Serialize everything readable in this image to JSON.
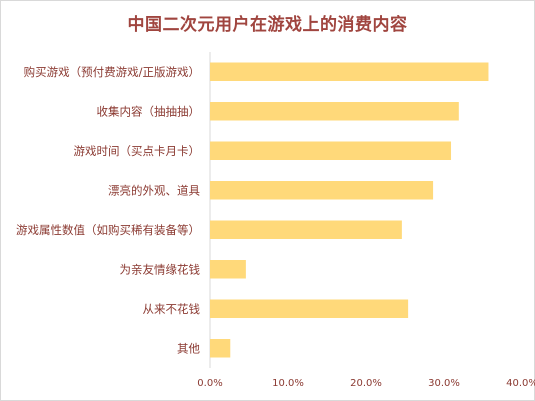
{
  "chart_data": {
    "type": "bar",
    "orientation": "horizontal",
    "title": "中国二次元用户在游戏上的消费内容",
    "categories": [
      "购买游戏（预付费游戏/正版游戏）",
      "收集内容（抽抽抽）",
      "游戏时间（买点卡月卡）",
      "漂亮的外观、道具",
      "游戏属性数值（如购买稀有装备等）",
      "为亲友情缘花钱",
      "从来不花钱",
      "其他"
    ],
    "values": [
      35.7,
      31.9,
      30.9,
      28.6,
      24.6,
      4.6,
      25.4,
      2.6
    ],
    "unit": "%",
    "xlim": [
      0,
      40
    ],
    "x_ticks": [
      "0.0%",
      "10.0%",
      "20.0%",
      "30.0%",
      "40.0%"
    ],
    "grid": false,
    "legend": "none",
    "bar_color": "#ffd97a"
  }
}
